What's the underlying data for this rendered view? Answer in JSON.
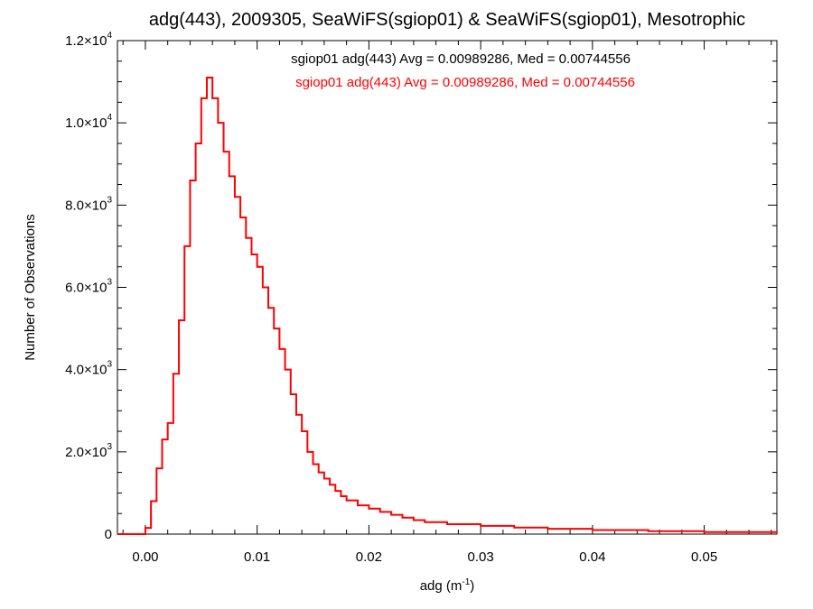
{
  "chart_data": {
    "type": "histogram",
    "title": "adg(443), 2009305, SeaWiFS(sgiop01) & SeaWiFS(sgiop01), Mesotrophic",
    "xlabel": {
      "base": "adg (m",
      "sup": "-1",
      "tail": ")"
    },
    "ylabel": "Number of Observations",
    "xlim": [
      -0.0025,
      0.0565
    ],
    "ylim": [
      0,
      12000
    ],
    "x_ticks": [
      {
        "value": 0.0,
        "label": "0.00"
      },
      {
        "value": 0.01,
        "label": "0.01"
      },
      {
        "value": 0.02,
        "label": "0.02"
      },
      {
        "value": 0.03,
        "label": "0.03"
      },
      {
        "value": 0.04,
        "label": "0.04"
      },
      {
        "value": 0.05,
        "label": "0.05"
      }
    ],
    "y_ticks": [
      {
        "value": 0,
        "mant": "0",
        "exp": ""
      },
      {
        "value": 2000,
        "mant": "2.0×10",
        "exp": "3"
      },
      {
        "value": 4000,
        "mant": "4.0×10",
        "exp": "3"
      },
      {
        "value": 6000,
        "mant": "6.0×10",
        "exp": "3"
      },
      {
        "value": 8000,
        "mant": "8.0×10",
        "exp": "3"
      },
      {
        "value": 10000,
        "mant": "1.0×10",
        "exp": "4"
      },
      {
        "value": 12000,
        "mant": "1.2×10",
        "exp": "4"
      }
    ],
    "annotations": [
      {
        "text": "sgiop01 adg(443) Avg = 0.00989286, Med = 0.00744556",
        "color": "#000000"
      },
      {
        "text": "sgiop01 adg(443) Avg = 0.00989286, Med = 0.00744556",
        "color": "#ff0000"
      }
    ],
    "series": [
      {
        "color": "#ff0000",
        "step": "mid",
        "points": [
          [
            -0.0025,
            0
          ],
          [
            -0.0005,
            0
          ],
          [
            0.0,
            150
          ],
          [
            0.0005,
            800
          ],
          [
            0.001,
            1600
          ],
          [
            0.0015,
            2300
          ],
          [
            0.002,
            2700
          ],
          [
            0.0025,
            3900
          ],
          [
            0.003,
            5200
          ],
          [
            0.0035,
            7000
          ],
          [
            0.004,
            8600
          ],
          [
            0.0045,
            9500
          ],
          [
            0.005,
            10600
          ],
          [
            0.0055,
            11100
          ],
          [
            0.006,
            10600
          ],
          [
            0.0065,
            10000
          ],
          [
            0.007,
            9300
          ],
          [
            0.0075,
            8700
          ],
          [
            0.008,
            8200
          ],
          [
            0.0085,
            7700
          ],
          [
            0.009,
            7200
          ],
          [
            0.0095,
            6800
          ],
          [
            0.01,
            6500
          ],
          [
            0.0105,
            6000
          ],
          [
            0.011,
            5500
          ],
          [
            0.0115,
            5000
          ],
          [
            0.012,
            4500
          ],
          [
            0.0125,
            4000
          ],
          [
            0.013,
            3400
          ],
          [
            0.0135,
            2900
          ],
          [
            0.014,
            2500
          ],
          [
            0.0145,
            2000
          ],
          [
            0.015,
            1700
          ],
          [
            0.0155,
            1500
          ],
          [
            0.016,
            1350
          ],
          [
            0.0165,
            1200
          ],
          [
            0.017,
            1050
          ],
          [
            0.0175,
            920
          ],
          [
            0.018,
            820
          ],
          [
            0.019,
            700
          ],
          [
            0.02,
            620
          ],
          [
            0.021,
            540
          ],
          [
            0.022,
            470
          ],
          [
            0.023,
            400
          ],
          [
            0.024,
            340
          ],
          [
            0.025,
            290
          ],
          [
            0.027,
            240
          ],
          [
            0.03,
            200
          ],
          [
            0.033,
            160
          ],
          [
            0.036,
            130
          ],
          [
            0.04,
            100
          ],
          [
            0.045,
            70
          ],
          [
            0.05,
            50
          ],
          [
            0.0565,
            40
          ]
        ]
      }
    ]
  }
}
